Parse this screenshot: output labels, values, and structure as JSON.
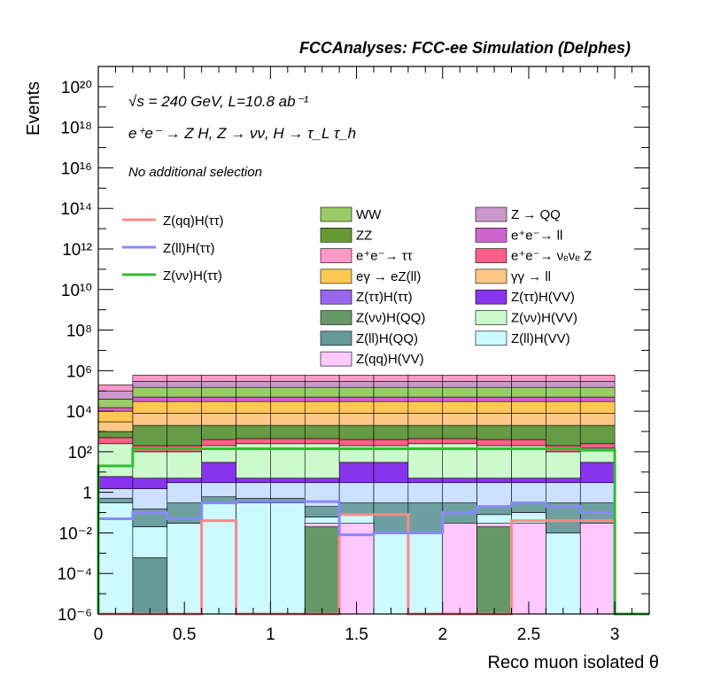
{
  "header": {
    "experiment": "FCCAnalyses: FCC-ee Simulation (Delphes)",
    "energy_lumi": "√s = 240 GeV, L=10.8 ab⁻¹",
    "process": "e⁺e⁻ → Z H, Z → νν, H → τ_L τ_h",
    "selection": "No additional selection"
  },
  "chart_data": {
    "type": "bar",
    "stacked": true,
    "xlabel": "Reco muon isolated θ",
    "ylabel": "Events",
    "log_y": true,
    "xlim": [
      0,
      3.2
    ],
    "ylim": [
      1e-06,
      1e+21
    ],
    "x_ticks": [
      "0",
      "0.5",
      "1",
      "1.5",
      "2",
      "2.5",
      "3"
    ],
    "y_ticks": [
      "10⁻⁶",
      "10⁻⁴",
      "10⁻²",
      "1",
      "10²",
      "10⁴",
      "10⁶",
      "10⁸",
      "10¹⁰",
      "10¹²",
      "10¹⁴",
      "10¹⁶",
      "10¹⁸",
      "10²⁰"
    ],
    "bin_edges": [
      0,
      0.2,
      0.4,
      0.6,
      0.8,
      1.0,
      1.2,
      1.4,
      1.6,
      1.8,
      2.0,
      2.2,
      2.4,
      2.6,
      2.8,
      3.0
    ],
    "stack_bounds": [
      [
        0.3,
        0.02,
        0.03,
        0.3,
        0.3,
        0.3,
        0.06,
        0.08,
        0.01,
        0.01,
        0.01,
        0.08,
        0.1,
        0.01,
        0.01
      ],
      [
        0.5,
        0.15,
        0.3,
        0.6,
        0.5,
        0.5,
        0.2,
        0.3,
        0.3,
        0.3,
        0.3,
        0.2,
        0.3,
        0.3,
        0.3
      ],
      [
        1.5,
        1.5,
        3,
        3,
        3,
        3,
        3,
        3,
        3,
        3,
        3,
        3,
        3,
        3,
        3
      ],
      [
        6,
        5,
        5,
        30,
        5,
        5,
        5,
        30,
        30,
        5,
        5,
        5,
        5,
        5,
        30
      ],
      [
        250,
        100,
        100,
        200,
        250,
        250,
        250,
        200,
        200,
        250,
        250,
        200,
        200,
        100,
        150
      ],
      [
        500,
        200,
        200,
        400,
        450,
        450,
        450,
        400,
        400,
        450,
        450,
        400,
        400,
        200,
        250
      ],
      [
        1000,
        2000,
        2000,
        2000,
        2000,
        2000,
        2000,
        2000,
        2000,
        2000,
        2000,
        2000,
        2000,
        2000,
        2000
      ],
      [
        3000,
        8000,
        8000,
        8000,
        8000,
        8000,
        8000,
        8000,
        8000,
        8000,
        8000,
        8000,
        8000,
        8000,
        8000
      ],
      [
        10000,
        30000,
        30000,
        30000,
        30000,
        30000,
        30000,
        30000,
        30000,
        30000,
        30000,
        30000,
        30000,
        30000,
        30000
      ],
      [
        15000,
        50000,
        50000,
        50000,
        50000,
        50000,
        50000,
        50000,
        50000,
        50000,
        50000,
        50000,
        50000,
        50000,
        50000
      ],
      [
        40000,
        150000,
        150000,
        150000,
        150000,
        150000,
        150000,
        150000,
        150000,
        150000,
        150000,
        150000,
        150000,
        150000,
        150000
      ],
      [
        100000,
        300000,
        300000,
        300000,
        300000,
        300000,
        300000,
        300000,
        300000,
        300000,
        300000,
        300000,
        300000,
        300000,
        300000
      ],
      [
        200000,
        600000,
        600000,
        600000,
        600000,
        600000,
        600000,
        600000,
        600000,
        600000,
        600000,
        600000,
        600000,
        600000,
        600000
      ]
    ],
    "stack_colors": [
      "#ccfaff",
      "#6ea0a0",
      "#cce0ff",
      "#8833ee",
      "#cdfacd",
      "#ff5f87",
      "#669a44",
      "#ffc887",
      "#ffc850",
      "#d762c8",
      "#99cc66",
      "#cc99cc",
      "#ff99c8"
    ],
    "stack_overlays": [
      {
        "name": "Z(qq)H(VV)",
        "color": "#ffc8ff",
        "bins": [
          [
            1.2,
            1.4
          ],
          [
            1.4,
            1.6
          ],
          [
            2.0,
            2.2
          ],
          [
            2.2,
            2.4
          ],
          [
            2.4,
            2.6
          ],
          [
            2.8,
            3.0
          ]
        ],
        "top": 0.03
      },
      {
        "name": "Z(ll)H(QQ)",
        "color": "#669999",
        "bins": [
          [
            0.2,
            0.4
          ]
        ],
        "top": 0.0006
      },
      {
        "name": "Z(νν)H(QQ)",
        "color": "#669966",
        "bins": [
          [
            1.2,
            1.4
          ],
          [
            2.2,
            2.4
          ]
        ],
        "top": 0.02
      }
    ],
    "lines": [
      {
        "name": "Z(qq)H(ττ)",
        "color": "#ff8888",
        "values": [
          1e-06,
          1e-06,
          1e-06,
          0.04,
          1e-06,
          1e-06,
          1e-06,
          0.08,
          0.08,
          1e-06,
          1e-06,
          1e-06,
          0.04,
          0.04,
          0.04
        ]
      },
      {
        "name": "Z(ll)H(ττ)",
        "color": "#8888ff",
        "values": [
          0.05,
          0.1,
          0.05,
          0.3,
          0.35,
          0.35,
          0.35,
          0.008,
          0.01,
          0.01,
          0.1,
          0.2,
          0.3,
          0.2,
          0.1
        ]
      },
      {
        "name": "Z(νν)H(ττ)",
        "color": "#33bb33",
        "values": [
          20,
          140,
          140,
          140,
          140,
          140,
          140,
          140,
          140,
          140,
          140,
          140,
          140,
          140,
          120
        ]
      }
    ],
    "legend_lines": [
      "Z(qq)H(ττ)",
      "Z(ll)H(ττ)",
      "Z(νν)H(ττ)"
    ],
    "legend_stack": [
      {
        "name": "WW",
        "color": "#99cc66"
      },
      {
        "name": "Z → QQ",
        "color": "#cc99cc"
      },
      {
        "name": "ZZ",
        "color": "#669933"
      },
      {
        "name": "e⁺e⁻→ ll",
        "color": "#cc66cc"
      },
      {
        "name": "e⁺e⁻→ ττ",
        "color": "#ff99c8"
      },
      {
        "name": "e⁺e⁻→ νₑνₑ Z",
        "color": "#ff5f87"
      },
      {
        "name": "eγ → eZ(ll)",
        "color": "#ffc850"
      },
      {
        "name": "γγ → ll",
        "color": "#ffc887"
      },
      {
        "name": "Z(ττ)H(ττ)",
        "color": "#9966ee"
      },
      {
        "name": "Z(ττ)H(VV)",
        "color": "#8833ee"
      },
      {
        "name": "Z(νν)H(QQ)",
        "color": "#669966"
      },
      {
        "name": "Z(νν)H(VV)",
        "color": "#cdfacd"
      },
      {
        "name": "Z(ll)H(QQ)",
        "color": "#669999"
      },
      {
        "name": "Z(ll)H(VV)",
        "color": "#ccfaff"
      },
      {
        "name": "Z(qq)H(VV)",
        "color": "#ffc8ff"
      }
    ]
  }
}
